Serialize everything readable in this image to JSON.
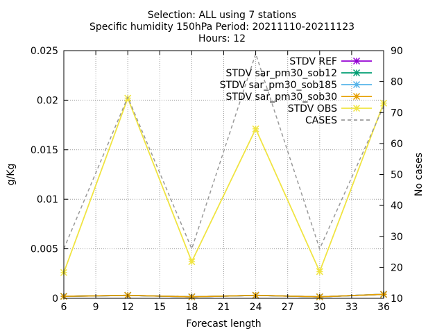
{
  "chart_data": {
    "type": "line",
    "title_lines": [
      "Selection: ALL using     7 stations",
      "Specific humidity 150hPa   Period: 20211110-20211123",
      "Hours: 12"
    ],
    "xlabel": "Forecast length",
    "ylabel": "g/Kg",
    "y2label": "No cases",
    "xlim": [
      6,
      36
    ],
    "ylim": [
      0,
      0.025
    ],
    "y2lim": [
      10,
      90
    ],
    "xticks": [
      "6",
      "9",
      "12",
      "15",
      "18",
      "21",
      "24",
      "27",
      "30",
      "33",
      "36"
    ],
    "yticks": [
      "0",
      "0.005",
      "0.01",
      "0.015",
      "0.02",
      "0.025"
    ],
    "y2ticks": [
      "10",
      "20",
      "30",
      "40",
      "50",
      "60",
      "70",
      "80",
      "90"
    ],
    "grid": true,
    "legend_position": "top-right",
    "x": [
      6,
      12,
      18,
      24,
      30,
      36
    ],
    "series": [
      {
        "name": "STDV REF",
        "color": "#9400d3",
        "marker": "star",
        "axis": "y",
        "dash": false,
        "values": [
          0.0002,
          0.0003,
          0.00015,
          0.0003,
          0.00015,
          0.0004
        ]
      },
      {
        "name": "STDV sar_pm30_sob12",
        "color": "#009e73",
        "marker": "star",
        "axis": "y",
        "dash": false,
        "values": [
          0.0002,
          0.0003,
          0.00015,
          0.0003,
          0.00015,
          0.0004
        ]
      },
      {
        "name": "STDV sar_pm30_sob185",
        "color": "#56b4e9",
        "marker": "star",
        "axis": "y",
        "dash": false,
        "values": [
          0.0002,
          0.0003,
          0.00015,
          0.0003,
          0.00015,
          0.0004
        ]
      },
      {
        "name": "STDV sar_pm30_sob30",
        "color": "#e69f00",
        "marker": "star",
        "axis": "y",
        "dash": false,
        "values": [
          0.0002,
          0.0003,
          0.00015,
          0.0003,
          0.00015,
          0.0004
        ]
      },
      {
        "name": "STDV OBS",
        "color": "#f0e442",
        "marker": "star",
        "axis": "y",
        "dash": false,
        "values": [
          0.0026,
          0.0202,
          0.0037,
          0.0171,
          0.0027,
          0.0197
        ]
      },
      {
        "name": "CASES",
        "color": "#999999",
        "marker": "none",
        "axis": "y2",
        "dash": true,
        "values": [
          26,
          75,
          26,
          89,
          26,
          72
        ]
      }
    ]
  }
}
